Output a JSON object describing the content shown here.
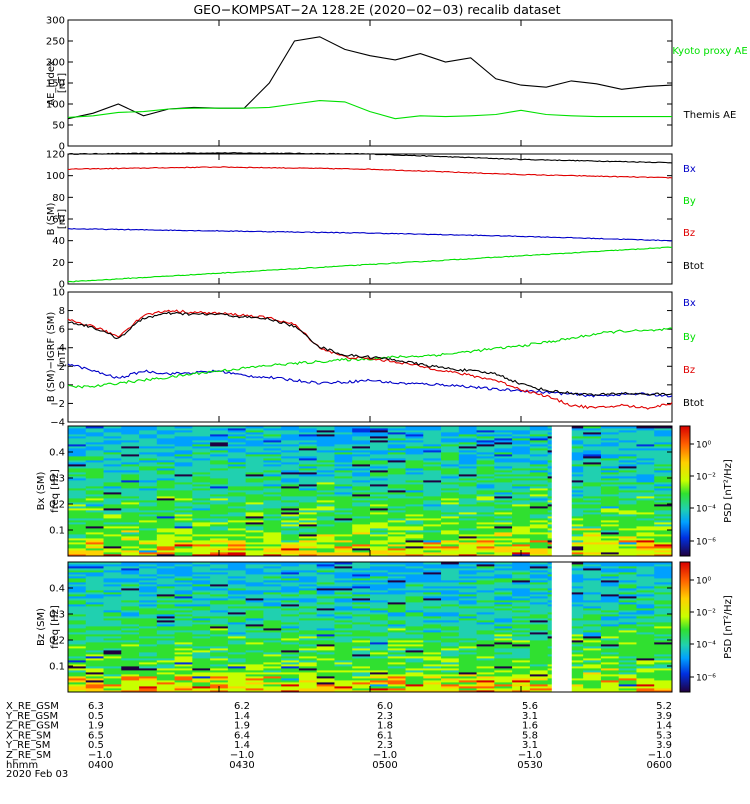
{
  "title": "GEO−KOMPSAT−2A 128.2E (2020−02−03) recalib dataset",
  "colors": {
    "black": "#000000",
    "red": "#e00000",
    "green": "#00e000",
    "blue": "#0000c8",
    "gap": "#ffffff"
  },
  "chart_data": [
    {
      "type": "line",
      "panel": "ae",
      "ylabel_top": "AE_index",
      "ylabel_bottom": "[nT]",
      "ylim": [
        0,
        300
      ],
      "yticks": [
        0,
        50,
        100,
        150,
        200,
        250,
        300
      ],
      "x": [
        0,
        5,
        10,
        15,
        20,
        25,
        30,
        35,
        40,
        45,
        50,
        55,
        60,
        65,
        70,
        75,
        80,
        85,
        90,
        95,
        100,
        105,
        110,
        115,
        120
      ],
      "series": [
        {
          "name": "Themis AE",
          "color": "#000000",
          "values": [
            65,
            78,
            100,
            72,
            88,
            92,
            90,
            90,
            150,
            250,
            260,
            230,
            215,
            205,
            220,
            200,
            210,
            160,
            145,
            140,
            155,
            148,
            135,
            142,
            145
          ]
        },
        {
          "name": "Kyoto proxy AE",
          "color": "#00e000",
          "values": [
            68,
            72,
            80,
            82,
            88,
            90,
            90,
            90,
            92,
            100,
            108,
            105,
            82,
            65,
            72,
            70,
            72,
            75,
            85,
            75,
            72,
            70,
            70,
            70,
            70
          ]
        }
      ],
      "legend": [
        "Kyoto proxy AE",
        "Themis AE"
      ]
    },
    {
      "type": "line",
      "panel": "b_sm",
      "ylabel_top": "B (SM)",
      "ylabel_bottom": "[nT]",
      "ylim": [
        0,
        120
      ],
      "yticks": [
        0,
        20,
        40,
        60,
        80,
        100,
        120
      ],
      "x": [
        0,
        30,
        60,
        90,
        120
      ],
      "series": [
        {
          "name": "Bx",
          "color": "#000000",
          "values": [
            120,
            121,
            120,
            115,
            112
          ]
        },
        {
          "name": "By",
          "color": "#e00000",
          "values": [
            106,
            108,
            106,
            101,
            98
          ]
        },
        {
          "name": "Bz",
          "color": "#0000c8",
          "values": [
            51,
            49,
            47,
            44,
            40
          ]
        },
        {
          "name": "Btot",
          "color": "#00e000",
          "values": [
            2,
            10,
            18,
            26,
            34
          ]
        }
      ],
      "legend": [
        "Bx",
        "By",
        "Bz",
        "Btot"
      ]
    },
    {
      "type": "line",
      "panel": "b_minus_igrf",
      "ylabel_top": "B (SM)−IGRF (SM)",
      "ylabel_bottom": "[nT]",
      "ylim": [
        -4,
        10
      ],
      "yticks": [
        -4,
        -2,
        0,
        2,
        4,
        6,
        8,
        10
      ],
      "x": [
        0,
        5,
        10,
        15,
        20,
        25,
        30,
        35,
        40,
        45,
        50,
        55,
        60,
        65,
        70,
        75,
        80,
        85,
        90,
        95,
        100,
        105,
        110,
        115,
        120
      ],
      "series": [
        {
          "name": "Bx",
          "color": "#0000c8",
          "values": [
            2.3,
            1.5,
            0.7,
            1.5,
            1.2,
            1.3,
            1.5,
            1.0,
            0.8,
            0.5,
            0.2,
            0.3,
            0.5,
            0.2,
            0.1,
            0.0,
            -0.2,
            -0.5,
            -0.6,
            -0.8,
            -1.0,
            -1.2,
            -1.0,
            -1.0,
            -1.2
          ]
        },
        {
          "name": "By",
          "color": "#00e000",
          "values": [
            -0.2,
            -0.2,
            0.2,
            0.5,
            0.8,
            1.2,
            1.5,
            1.8,
            2.1,
            2.3,
            2.5,
            2.7,
            2.8,
            3.0,
            3.1,
            3.3,
            3.6,
            3.9,
            4.2,
            4.6,
            5.0,
            5.5,
            5.8,
            5.8,
            6.0
          ]
        },
        {
          "name": "Bz",
          "color": "#e00000",
          "values": [
            7.0,
            6.3,
            5.2,
            7.5,
            8.0,
            7.8,
            7.7,
            7.5,
            7.2,
            6.5,
            4.0,
            3.0,
            2.8,
            2.5,
            2.0,
            1.5,
            1.0,
            0.5,
            -0.5,
            -1.2,
            -2.2,
            -2.5,
            -2.2,
            -2.5,
            -2.0
          ]
        },
        {
          "name": "Btot",
          "color": "#000000",
          "values": [
            6.8,
            6.2,
            5.0,
            7.2,
            7.7,
            7.6,
            7.6,
            7.3,
            7.1,
            6.3,
            4.1,
            3.2,
            3.0,
            2.7,
            2.2,
            1.8,
            1.5,
            1.2,
            0.1,
            -0.6,
            -0.9,
            -1.1,
            -0.9,
            -1.0,
            -1.0
          ]
        }
      ],
      "legend": [
        "Bx",
        "By",
        "Bz",
        "Btot"
      ]
    },
    {
      "type": "heatmap",
      "panel": "bx_spec",
      "ylabel_top": "Bx (SM)",
      "ylabel_bottom": "freq [Hz]",
      "ylim": [
        0,
        0.5
      ],
      "yticks": [
        0.1,
        0.2,
        0.3,
        0.4
      ],
      "colorbar": {
        "label": "PSD [nT²/Hz]",
        "ticks": [
          "10⁰",
          "10⁻²",
          "10⁻⁴",
          "10⁻⁶"
        ]
      },
      "data_gap": [
        0.801,
        0.834
      ]
    },
    {
      "type": "heatmap",
      "panel": "bz_spec",
      "ylabel_top": "Bz (SM)",
      "ylabel_bottom": "freq [Hz]",
      "ylim": [
        0,
        0.5
      ],
      "yticks": [
        0.1,
        0.2,
        0.3,
        0.4
      ],
      "colorbar": {
        "label": "PSD [nT²/Hz]",
        "ticks": [
          "10⁰",
          "10⁻²",
          "10⁻⁴",
          "10⁻⁶"
        ]
      },
      "data_gap": [
        0.801,
        0.834
      ]
    }
  ],
  "ephemeris": {
    "labels": [
      "X_RE_GSM",
      "Y_RE_GSM",
      "Z_RE_GSM",
      "X_RE_SM",
      "Y_RE_SM",
      "Z_RE_SM",
      "hhmm"
    ],
    "columns": [
      [
        "6.3",
        "0.5",
        "1.9",
        "6.5",
        "0.5",
        "−1.0",
        "0400"
      ],
      [
        "6.2",
        "1.4",
        "1.9",
        "6.4",
        "1.4",
        "−1.0",
        "0430"
      ],
      [
        "6.0",
        "2.3",
        "1.8",
        "6.1",
        "2.3",
        "−1.0",
        "0500"
      ],
      [
        "5.6",
        "3.1",
        "1.6",
        "5.8",
        "3.1",
        "−1.0",
        "0530"
      ],
      [
        "5.2",
        "3.9",
        "1.4",
        "5.3",
        "3.9",
        "−1.0",
        "0600"
      ]
    ],
    "date": "2020 Feb 03"
  }
}
